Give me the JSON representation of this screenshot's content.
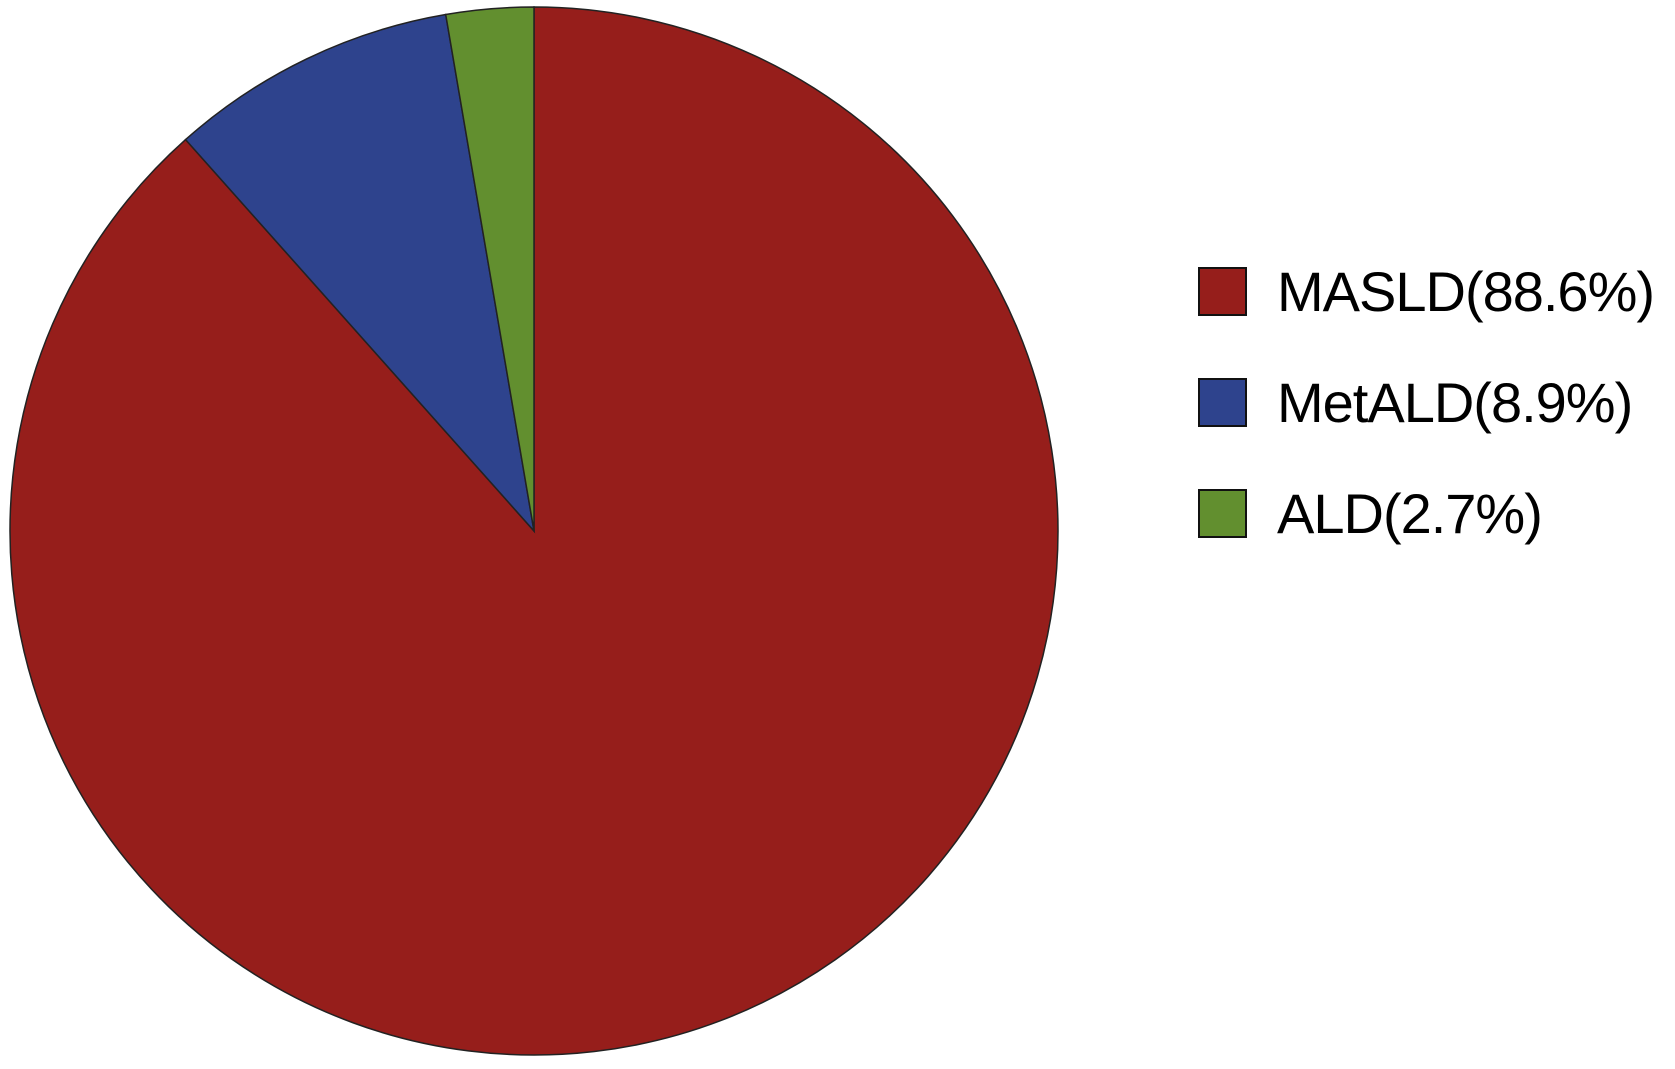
{
  "chart_data": {
    "type": "pie",
    "title": "",
    "start_angle": "12 o'clock",
    "direction": "clockwise",
    "legend_placement": "right",
    "slices": [
      {
        "label": "MASLD(88.6%)",
        "name": "MASLD",
        "value": 88.6,
        "color": "#961e1b"
      },
      {
        "label": "MetALD(8.9%)",
        "name": "MetALD",
        "value": 8.9,
        "color": "#2e438d"
      },
      {
        "label": "ALD(2.7%)",
        "name": "ALD",
        "value": 2.7,
        "color": "#628f2f"
      }
    ]
  }
}
